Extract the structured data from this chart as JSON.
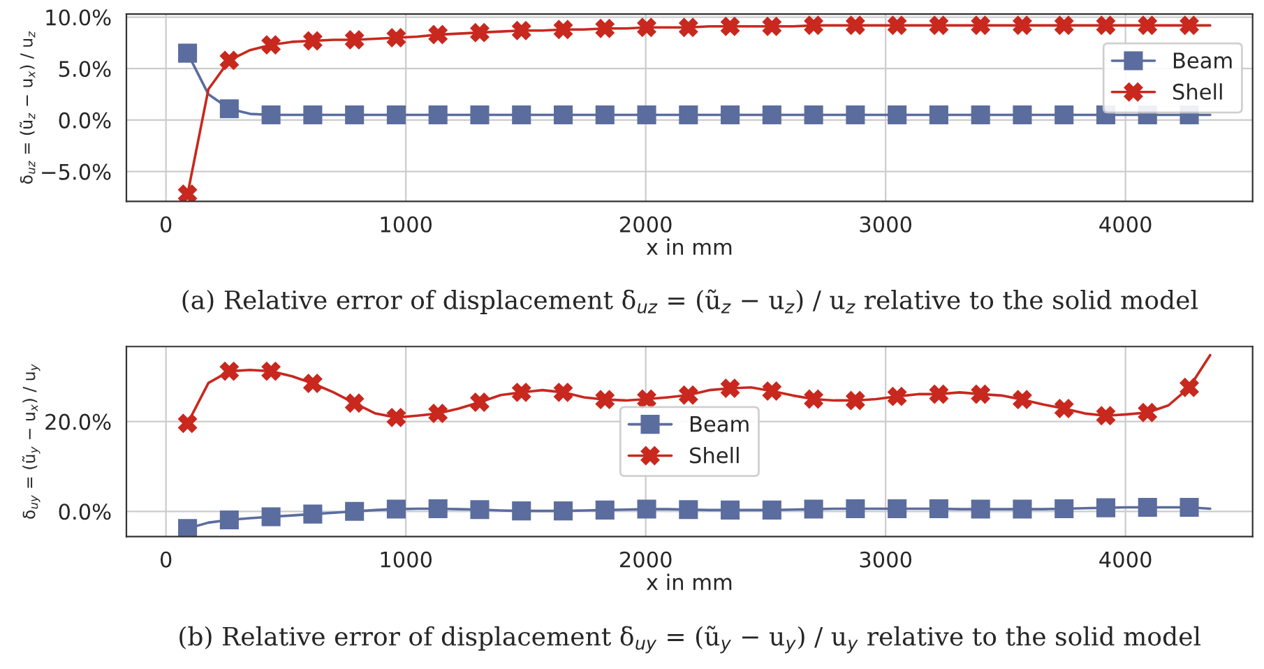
{
  "chart_data": [
    {
      "type": "line",
      "xlabel": "x in mm",
      "ylabel": "δ$_{uz}$ = (ũ$_{z}$ − u$_{x}$) / u$_{z}$",
      "annotations": [
        "(a) Relative error of displacement δ$_{uz}$ = (ũ$_{z}$ − u$_{z}$) / u$_{z}$ relative to the solid model"
      ],
      "x": [
        90,
        177,
        264,
        351,
        438,
        525,
        612,
        699,
        786,
        873,
        960,
        1047,
        1134,
        1221,
        1308,
        1395,
        1482,
        1569,
        1656,
        1743,
        1830,
        1917,
        2004,
        2091,
        2178,
        2265,
        2352,
        2439,
        2526,
        2613,
        2700,
        2787,
        2874,
        2961,
        3048,
        3135,
        3222,
        3309,
        3396,
        3483,
        3570,
        3657,
        3744,
        3831,
        3918,
        4005,
        4092,
        4179,
        4266,
        4353
      ],
      "series": [
        {
          "name": "Beam",
          "color": "#5b6d9e",
          "marker": "square",
          "values": [
            6.5,
            2.5,
            1.1,
            0.6,
            0.5,
            0.5,
            0.5,
            0.5,
            0.5,
            0.5,
            0.5,
            0.5,
            0.5,
            0.5,
            0.5,
            0.5,
            0.5,
            0.5,
            0.5,
            0.5,
            0.5,
            0.5,
            0.5,
            0.5,
            0.5,
            0.5,
            0.5,
            0.5,
            0.5,
            0.5,
            0.5,
            0.5,
            0.5,
            0.5,
            0.5,
            0.5,
            0.5,
            0.5,
            0.5,
            0.5,
            0.5,
            0.5,
            0.5,
            0.5,
            0.5,
            0.5,
            0.5,
            0.5,
            0.5,
            0.5
          ]
        },
        {
          "name": "Shell",
          "color": "#c8281e",
          "marker": "cross",
          "values": [
            -7.2,
            3.0,
            5.8,
            6.8,
            7.3,
            7.6,
            7.7,
            7.8,
            7.8,
            7.9,
            8.0,
            8.1,
            8.3,
            8.4,
            8.5,
            8.6,
            8.7,
            8.7,
            8.8,
            8.8,
            8.9,
            8.9,
            9.0,
            9.0,
            9.0,
            9.1,
            9.1,
            9.1,
            9.1,
            9.1,
            9.2,
            9.2,
            9.2,
            9.2,
            9.2,
            9.2,
            9.2,
            9.2,
            9.2,
            9.2,
            9.2,
            9.2,
            9.2,
            9.2,
            9.2,
            9.2,
            9.2,
            9.2,
            9.2,
            9.2
          ]
        }
      ],
      "xlim": [
        -165,
        4530
      ],
      "xticks": [
        0,
        1000,
        2000,
        3000,
        4000
      ],
      "ylim": [
        -7.9,
        10.3
      ],
      "yticks": [
        {
          "value": -5,
          "label": "−5.0%"
        },
        {
          "value": 0,
          "label": "0.0%"
        },
        {
          "value": 5,
          "label": "5.0%"
        },
        {
          "value": 10,
          "label": "10.0%"
        }
      ],
      "grid": true,
      "legend": "top right",
      "line_style": "solid"
    },
    {
      "type": "line",
      "xlabel": "x in mm",
      "ylabel": "δ$_{uy}$ = (ũ$_{y}$ − u$_{x}$) / u$_{y}$",
      "annotations": [
        "(b) Relative error of displacement δ$_{uy}$ = (ũ$_{y}$ − u$_{y}$) / u$_{y}$ relative to the solid model"
      ],
      "x": [
        90,
        177,
        264,
        351,
        438,
        525,
        612,
        699,
        786,
        873,
        960,
        1047,
        1134,
        1221,
        1308,
        1395,
        1482,
        1569,
        1656,
        1743,
        1830,
        1917,
        2004,
        2091,
        2178,
        2265,
        2352,
        2439,
        2526,
        2613,
        2700,
        2787,
        2874,
        2961,
        3048,
        3135,
        3222,
        3309,
        3396,
        3483,
        3570,
        3657,
        3744,
        3831,
        3918,
        4005,
        4092,
        4179,
        4266,
        4353
      ],
      "series": [
        {
          "name": "Beam",
          "color": "#5b6d9e",
          "marker": "square",
          "values": [
            -3.8,
            -2.5,
            -1.9,
            -1.5,
            -1.2,
            -0.9,
            -0.6,
            -0.3,
            0.0,
            0.3,
            0.5,
            0.6,
            0.6,
            0.5,
            0.4,
            0.2,
            0.1,
            0.1,
            0.1,
            0.2,
            0.3,
            0.4,
            0.5,
            0.5,
            0.4,
            0.3,
            0.3,
            0.3,
            0.3,
            0.4,
            0.5,
            0.6,
            0.6,
            0.6,
            0.6,
            0.6,
            0.6,
            0.5,
            0.5,
            0.5,
            0.5,
            0.5,
            0.6,
            0.7,
            0.8,
            0.9,
            0.9,
            0.9,
            0.9,
            0.6
          ]
        },
        {
          "name": "Shell",
          "color": "#c8281e",
          "marker": "cross",
          "values": [
            19.6,
            28.6,
            31.2,
            31.5,
            31.2,
            30.1,
            28.5,
            26.5,
            24.1,
            21.8,
            20.9,
            21.3,
            21.8,
            22.9,
            24.3,
            25.9,
            26.5,
            27.0,
            26.5,
            25.4,
            24.9,
            24.7,
            25.0,
            25.4,
            25.9,
            27.0,
            27.4,
            27.6,
            26.8,
            25.8,
            25.0,
            24.7,
            24.7,
            25.0,
            25.6,
            26.1,
            26.1,
            26.5,
            26.1,
            25.8,
            24.9,
            23.8,
            22.9,
            21.8,
            21.3,
            21.6,
            22.0,
            23.6,
            27.6,
            34.8
          ]
        }
      ],
      "xlim": [
        -165,
        4530
      ],
      "xticks": [
        0,
        1000,
        2000,
        3000,
        4000
      ],
      "ylim": [
        -5.6,
        36.7
      ],
      "yticks": [
        {
          "value": 0,
          "label": "0.0%"
        },
        {
          "value": 20,
          "label": "20.0%"
        }
      ],
      "grid": true,
      "legend": "center",
      "line_style": "solid"
    }
  ]
}
